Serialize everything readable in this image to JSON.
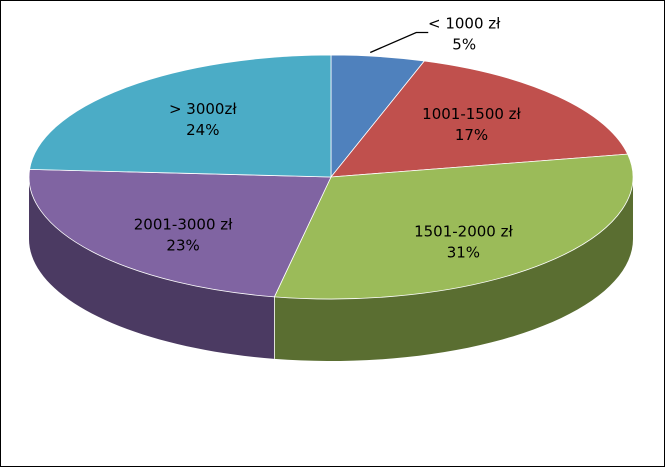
{
  "chart_data": {
    "type": "pie",
    "title": "",
    "style": "3d-exploded-none",
    "slices": [
      {
        "label": "< 1000 zł",
        "value": 5,
        "value_label": "5%",
        "color": "#4F81BD",
        "side_color": "#2C4D75"
      },
      {
        "label": "1001-1500 zł",
        "value": 17,
        "value_label": "17%",
        "color": "#C0504D",
        "side_color": "#7A2F2D"
      },
      {
        "label": "1501-2000 zł",
        "value": 31,
        "value_label": "31%",
        "color": "#9BBB59",
        "side_color": "#5A6E31"
      },
      {
        "label": "2001-3000 zł",
        "value": 23,
        "value_label": "23%",
        "color": "#8064A2",
        "side_color": "#4B3A62"
      },
      {
        "label": "> 3000zł",
        "value": 24,
        "value_label": "24%",
        "color": "#4BACC6",
        "side_color": "#2B6677"
      }
    ],
    "legend": "none",
    "data_labels": "inside-or-leader"
  }
}
